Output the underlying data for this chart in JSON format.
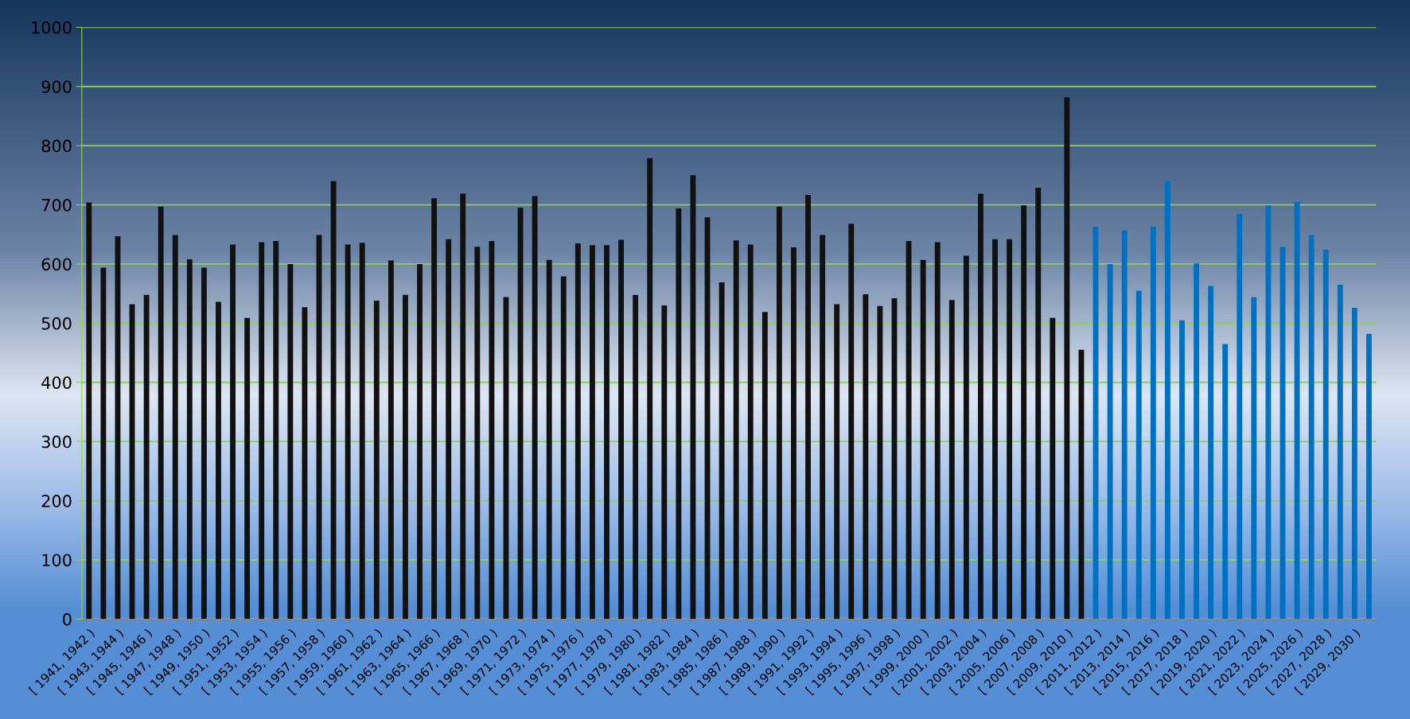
{
  "chart_data": {
    "type": "bar",
    "categories": [
      "[ 1941, 1942 )",
      null,
      "[ 1943, 1944 )",
      null,
      "[ 1945, 1946 )",
      null,
      "[ 1947, 1948 )",
      null,
      "[ 1949, 1950 )",
      null,
      "[ 1951, 1952 )",
      null,
      "[ 1953, 1954 )",
      null,
      "[ 1955, 1956 )",
      null,
      "[ 1957, 1958 )",
      null,
      "[ 1959, 1960 )",
      null,
      "[ 1961, 1962 )",
      null,
      "[ 1963, 1964 )",
      null,
      "[ 1965, 1966 )",
      null,
      "[ 1967, 1968 )",
      null,
      "[ 1969, 1970 )",
      null,
      "[ 1971, 1972 )",
      null,
      "[ 1973, 1974 )",
      null,
      "[ 1975, 1976 )",
      null,
      "[ 1977, 1978 )",
      null,
      "[ 1979, 1980 )",
      null,
      "[ 1981, 1982 )",
      null,
      "[ 1983, 1984 )",
      null,
      "[ 1985, 1986 )",
      null,
      "[ 1987, 1988 )",
      null,
      "[ 1989, 1990 )",
      null,
      "[ 1991, 1992 )",
      null,
      "[ 1993, 1994 )",
      null,
      "[ 1995, 1996 )",
      null,
      "[ 1997, 1998 )",
      null,
      "[ 1999, 2000 )",
      null,
      "[ 2001, 2002 )",
      null,
      "[ 2003, 2004 )",
      null,
      "[ 2005, 2006 )",
      null,
      "[ 2007, 2008 )",
      null,
      "[ 2009, 2010 )",
      null,
      "[ 2011, 2012 )",
      null,
      "[ 2013, 2014 )",
      null,
      "[ 2015, 2016 )",
      null,
      "[ 2017, 2018 )",
      null,
      "[ 2019, 2020 )",
      null,
      "[ 2021, 2022 )",
      null,
      "[ 2023, 2024 )",
      null,
      "[ 2025, 2026 )",
      null,
      "[ 2027, 2028 )",
      null,
      "[ 2029, 2030 )",
      null
    ],
    "values": [
      704,
      594,
      647,
      532,
      548,
      697,
      649,
      608,
      594,
      536,
      633,
      509,
      637,
      639,
      600,
      527,
      649,
      740,
      633,
      636,
      538,
      606,
      548,
      600,
      711,
      642,
      719,
      629,
      639,
      544,
      695,
      715,
      607,
      579,
      635,
      632,
      632,
      641,
      548,
      779,
      530,
      694,
      750,
      679,
      569,
      640,
      633,
      519,
      697,
      628,
      717,
      649,
      532,
      668,
      549,
      529,
      542,
      639,
      607,
      637,
      539,
      614,
      719,
      642,
      642,
      699,
      729,
      509,
      882,
      455,
      663,
      600,
      657,
      555,
      663,
      740,
      505,
      601,
      563,
      465,
      685,
      544,
      699,
      629,
      705,
      649,
      624,
      565,
      526,
      482
    ],
    "colors": [
      "#111111",
      "#111111",
      "#111111",
      "#111111",
      "#111111",
      "#111111",
      "#111111",
      "#111111",
      "#111111",
      "#111111",
      "#111111",
      "#111111",
      "#111111",
      "#111111",
      "#111111",
      "#111111",
      "#111111",
      "#111111",
      "#111111",
      "#111111",
      "#111111",
      "#111111",
      "#111111",
      "#111111",
      "#111111",
      "#111111",
      "#111111",
      "#111111",
      "#111111",
      "#111111",
      "#111111",
      "#111111",
      "#111111",
      "#111111",
      "#111111",
      "#111111",
      "#111111",
      "#111111",
      "#111111",
      "#111111",
      "#111111",
      "#111111",
      "#111111",
      "#111111",
      "#111111",
      "#111111",
      "#111111",
      "#111111",
      "#111111",
      "#111111",
      "#111111",
      "#111111",
      "#111111",
      "#111111",
      "#111111",
      "#111111",
      "#111111",
      "#111111",
      "#111111",
      "#111111",
      "#111111",
      "#111111",
      "#111111",
      "#111111",
      "#111111",
      "#111111",
      "#111111",
      "#111111",
      "#111111",
      "#111111",
      "#0070c0",
      "#0070c0",
      "#0070c0",
      "#0070c0",
      "#0070c0",
      "#0070c0",
      "#0070c0",
      "#0070c0",
      "#0070c0",
      "#0070c0",
      "#0070c0",
      "#0070c0",
      "#0070c0",
      "#0070c0",
      "#0070c0",
      "#0070c0",
      "#0070c0",
      "#0070c0",
      "#0070c0",
      "#0070c0"
    ],
    "ylim": [
      0,
      1000
    ],
    "yticks": [
      0,
      100,
      200,
      300,
      400,
      500,
      600,
      700,
      800,
      900,
      1000
    ],
    "grid": "y"
  }
}
